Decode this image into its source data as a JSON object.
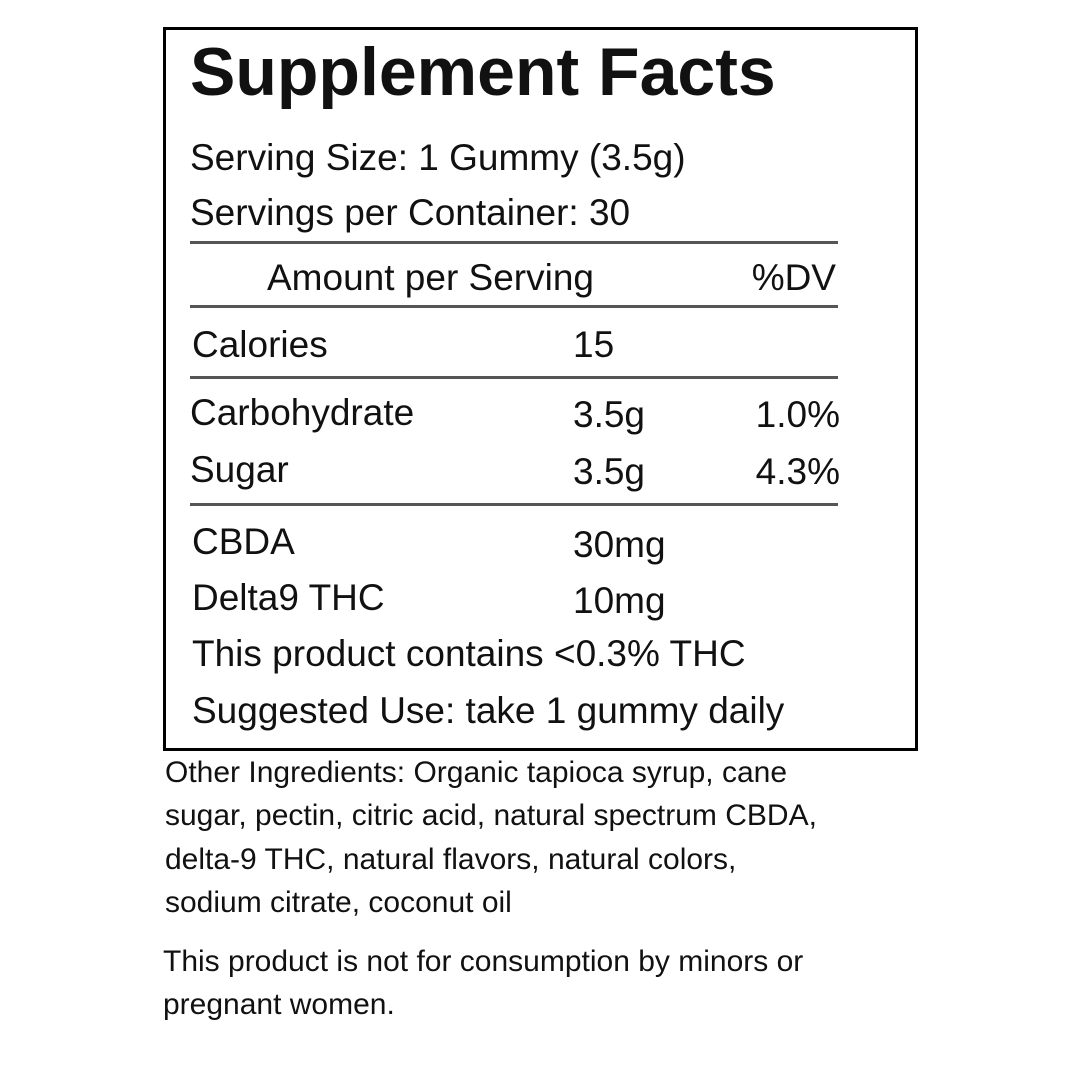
{
  "title": "Supplement Facts",
  "serving_size": "Serving Size: 1 Gummy (3.5g)",
  "servings_per_container": "Servings per Container: 30",
  "header": {
    "amount": "Amount per Serving",
    "dv": "%DV"
  },
  "calories": {
    "name": "Calories",
    "amount": "15"
  },
  "carbs": [
    {
      "name": "Carbohydrate",
      "amount": "3.5g",
      "dv": "1.0%"
    },
    {
      "name": "Sugar",
      "amount": "3.5g",
      "dv": "4.3%"
    }
  ],
  "cannabinoids": [
    {
      "name": "CBDA",
      "amount": "30mg"
    },
    {
      "name": "Delta9 THC",
      "amount": "10mg"
    }
  ],
  "notes": [
    "This product contains <0.3% THC",
    "Suggested Use: take 1 gummy daily"
  ],
  "other_ingredients": [
    "Other Ingredients: Organic tapioca syrup, cane",
    "sugar, pectin, citric acid, natural spectrum CBDA,",
    "delta-9 THC, natural flavors, natural colors,",
    "sodium citrate, coconut oil"
  ],
  "warning": [
    "This product is not for consumption by minors or",
    "pregnant women."
  ]
}
